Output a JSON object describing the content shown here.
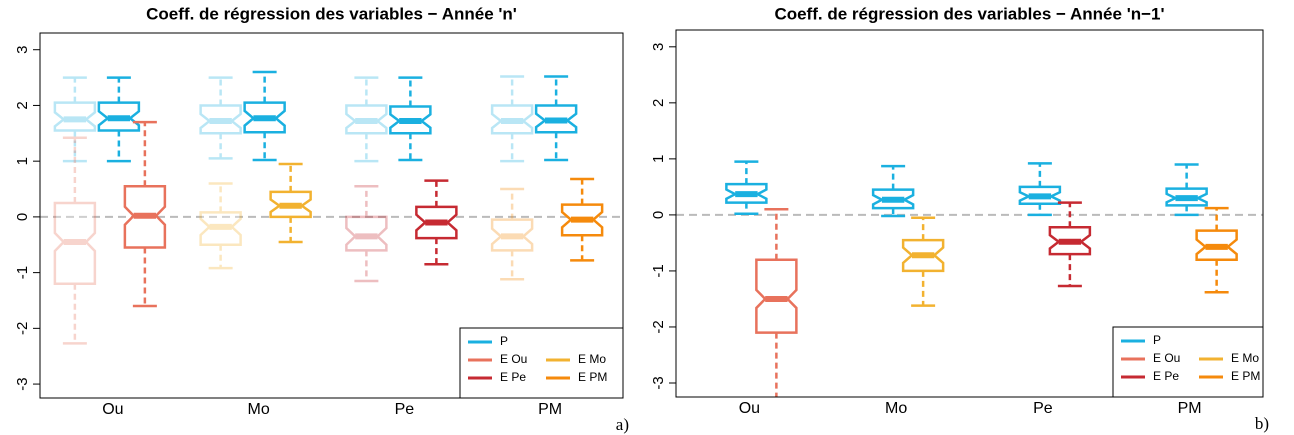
{
  "chart_data": [
    {
      "type": "box",
      "title": "Coeff. de régression des variables − Année 'n'",
      "panel_label": "a)",
      "categories": [
        "Ou",
        "Mo",
        "Pe",
        "PM"
      ],
      "ylim": [
        -3.25,
        3.3
      ],
      "yticks": [
        -3,
        -2,
        -1,
        0,
        1,
        2,
        3
      ],
      "hline": 0,
      "legend": [
        {
          "name": "P",
          "color": "#1ab0e0"
        },
        {
          "name": "E Ou",
          "color": "#e8725c"
        },
        {
          "name": "E Mo",
          "color": "#f2b230"
        },
        {
          "name": "E Pe",
          "color": "#c62a32"
        },
        {
          "name": "E PM",
          "color": "#f58a0c"
        }
      ],
      "groups": [
        [
          {
            "color": "#1ab0e0",
            "faded": true,
            "low": 1.0,
            "q1": 1.55,
            "median": 1.75,
            "q3": 2.05,
            "high": 2.5
          },
          {
            "color": "#1ab0e0",
            "faded": false,
            "low": 1.0,
            "q1": 1.55,
            "median": 1.77,
            "q3": 2.05,
            "high": 2.5
          },
          {
            "color": "#e8725c",
            "faded": true,
            "low": -2.27,
            "q1": -1.2,
            "median": -0.45,
            "q3": 0.25,
            "high": 1.42
          },
          {
            "color": "#e8725c",
            "faded": false,
            "low": -1.6,
            "q1": -0.55,
            "median": 0.02,
            "q3": 0.55,
            "high": 1.7
          }
        ],
        [
          {
            "color": "#1ab0e0",
            "faded": true,
            "low": 1.05,
            "q1": 1.5,
            "median": 1.72,
            "q3": 2.0,
            "high": 2.5
          },
          {
            "color": "#1ab0e0",
            "faded": false,
            "low": 1.02,
            "q1": 1.52,
            "median": 1.77,
            "q3": 2.05,
            "high": 2.6
          },
          {
            "color": "#f2b230",
            "faded": true,
            "low": -0.92,
            "q1": -0.5,
            "median": -0.18,
            "q3": 0.08,
            "high": 0.6
          },
          {
            "color": "#f2b230",
            "faded": false,
            "low": -0.45,
            "q1": 0.0,
            "median": 0.2,
            "q3": 0.45,
            "high": 0.95
          }
        ],
        [
          {
            "color": "#1ab0e0",
            "faded": true,
            "low": 1.0,
            "q1": 1.5,
            "median": 1.72,
            "q3": 2.0,
            "high": 2.5
          },
          {
            "color": "#1ab0e0",
            "faded": false,
            "low": 1.02,
            "q1": 1.5,
            "median": 1.72,
            "q3": 1.98,
            "high": 2.5
          },
          {
            "color": "#c62a32",
            "faded": true,
            "low": -1.15,
            "q1": -0.6,
            "median": -0.35,
            "q3": 0.0,
            "high": 0.55
          },
          {
            "color": "#c62a32",
            "faded": false,
            "low": -0.85,
            "q1": -0.38,
            "median": -0.1,
            "q3": 0.18,
            "high": 0.65
          }
        ],
        [
          {
            "color": "#1ab0e0",
            "faded": true,
            "low": 1.0,
            "q1": 1.5,
            "median": 1.72,
            "q3": 2.0,
            "high": 2.52
          },
          {
            "color": "#1ab0e0",
            "faded": false,
            "low": 1.02,
            "q1": 1.52,
            "median": 1.73,
            "q3": 2.0,
            "high": 2.52
          },
          {
            "color": "#f58a0c",
            "faded": true,
            "low": -1.12,
            "q1": -0.6,
            "median": -0.35,
            "q3": -0.05,
            "high": 0.5
          },
          {
            "color": "#f58a0c",
            "faded": false,
            "low": -0.78,
            "q1": -0.33,
            "median": -0.05,
            "q3": 0.22,
            "high": 0.68
          }
        ]
      ]
    },
    {
      "type": "box",
      "title": "Coeff. de régression des variables − Année 'n−1'",
      "panel_label": "b)",
      "categories": [
        "Ou",
        "Mo",
        "Pe",
        "PM"
      ],
      "ylim": [
        -3.25,
        3.3
      ],
      "yticks": [
        -3,
        -2,
        -1,
        0,
        1,
        2,
        3
      ],
      "hline": 0,
      "legend": [
        {
          "name": "P",
          "color": "#1ab0e0"
        },
        {
          "name": "E Ou",
          "color": "#e8725c"
        },
        {
          "name": "E Mo",
          "color": "#f2b230"
        },
        {
          "name": "E Pe",
          "color": "#c62a32"
        },
        {
          "name": "E PM",
          "color": "#f58a0c"
        }
      ],
      "groups": [
        [
          {
            "color": "#1ab0e0",
            "faded": false,
            "low": 0.02,
            "q1": 0.22,
            "median": 0.37,
            "q3": 0.55,
            "high": 0.95
          },
          {
            "color": "#e8725c",
            "faded": false,
            "low": -3.5,
            "q1": -2.1,
            "median": -1.5,
            "q3": -0.8,
            "high": 0.1
          }
        ],
        [
          {
            "color": "#1ab0e0",
            "faded": false,
            "low": -0.02,
            "q1": 0.12,
            "median": 0.27,
            "q3": 0.45,
            "high": 0.87
          },
          {
            "color": "#f2b230",
            "faded": false,
            "low": -1.62,
            "q1": -1.0,
            "median": -0.72,
            "q3": -0.45,
            "high": -0.05
          }
        ],
        [
          {
            "color": "#1ab0e0",
            "faded": false,
            "low": 0.0,
            "q1": 0.2,
            "median": 0.33,
            "q3": 0.5,
            "high": 0.92
          },
          {
            "color": "#c62a32",
            "faded": false,
            "low": -1.27,
            "q1": -0.7,
            "median": -0.48,
            "q3": -0.22,
            "high": 0.22
          }
        ],
        [
          {
            "color": "#1ab0e0",
            "faded": false,
            "low": 0.0,
            "q1": 0.17,
            "median": 0.3,
            "q3": 0.47,
            "high": 0.9
          },
          {
            "color": "#f58a0c",
            "faded": false,
            "low": -1.38,
            "q1": -0.8,
            "median": -0.57,
            "q3": -0.28,
            "high": 0.12
          }
        ]
      ]
    }
  ]
}
